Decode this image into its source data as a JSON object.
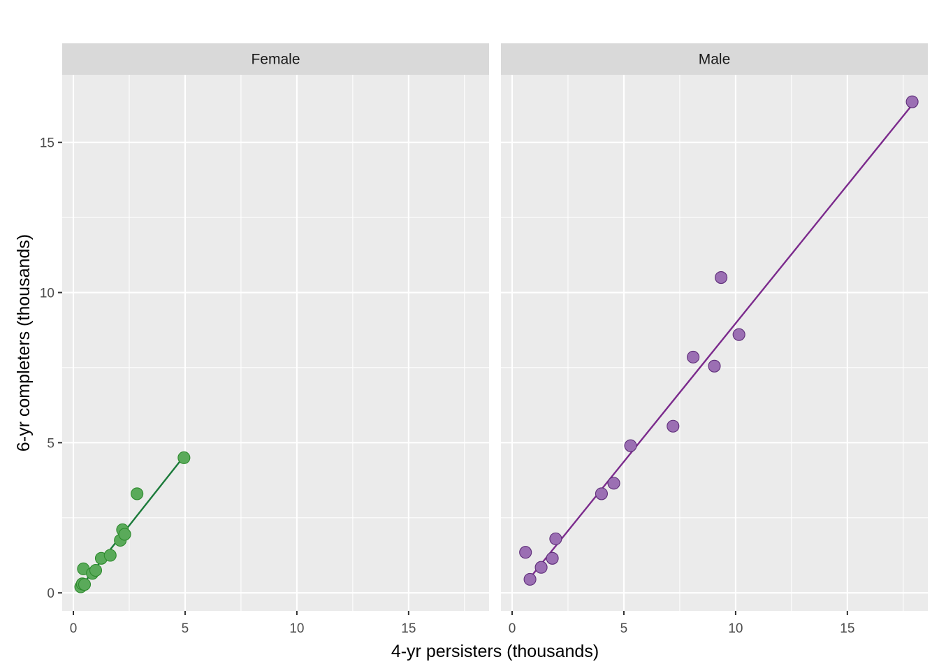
{
  "chart_data": {
    "type": "scatter",
    "title": "",
    "xlabel": "4-yr persisters (thousands)",
    "ylabel": "6-yr completers (thousands)",
    "xlim": [
      -0.5,
      18.6
    ],
    "ylim": [
      -0.6,
      17.25
    ],
    "x_ticks": [
      0,
      5,
      10,
      15
    ],
    "y_ticks": [
      0,
      5,
      10,
      15
    ],
    "grid": true,
    "facets": [
      {
        "label": "Female",
        "color": "#2d8a2d",
        "fill": "#5aaa5a",
        "points": [
          {
            "x": 0.33,
            "y": 0.2
          },
          {
            "x": 0.4,
            "y": 0.3
          },
          {
            "x": 0.45,
            "y": 0.8
          },
          {
            "x": 0.5,
            "y": 0.28
          },
          {
            "x": 0.85,
            "y": 0.65
          },
          {
            "x": 1.0,
            "y": 0.75
          },
          {
            "x": 1.25,
            "y": 1.15
          },
          {
            "x": 1.65,
            "y": 1.25
          },
          {
            "x": 2.1,
            "y": 1.75
          },
          {
            "x": 2.2,
            "y": 2.1
          },
          {
            "x": 2.3,
            "y": 1.95
          },
          {
            "x": 2.85,
            "y": 3.3
          },
          {
            "x": 4.95,
            "y": 4.5
          }
        ],
        "fit": {
          "x": [
            0.33,
            4.95
          ],
          "y": [
            0.2,
            4.55
          ]
        },
        "fit_color": "#1b7a3a"
      },
      {
        "label": "Male",
        "color": "#5e2d79",
        "fill": "#9b6fb3",
        "points": [
          {
            "x": 0.6,
            "y": 1.35
          },
          {
            "x": 0.8,
            "y": 0.45
          },
          {
            "x": 1.3,
            "y": 0.85
          },
          {
            "x": 1.8,
            "y": 1.15
          },
          {
            "x": 1.95,
            "y": 1.8
          },
          {
            "x": 4.0,
            "y": 3.3
          },
          {
            "x": 4.55,
            "y": 3.65
          },
          {
            "x": 5.3,
            "y": 4.9
          },
          {
            "x": 7.2,
            "y": 5.55
          },
          {
            "x": 8.1,
            "y": 7.85
          },
          {
            "x": 9.05,
            "y": 7.55
          },
          {
            "x": 9.35,
            "y": 10.5
          },
          {
            "x": 10.15,
            "y": 8.6
          },
          {
            "x": 17.9,
            "y": 16.35
          }
        ],
        "fit": {
          "x": [
            0.8,
            17.9
          ],
          "y": [
            0.5,
            16.25
          ]
        },
        "fit_color": "#7b2a8c"
      }
    ]
  }
}
